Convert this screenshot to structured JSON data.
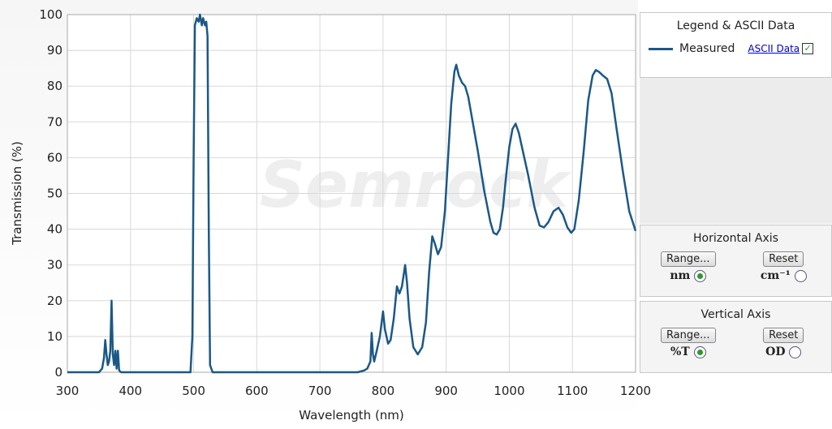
{
  "chart_data": {
    "type": "line",
    "x_label": "Wavelength (nm)",
    "y_label": "Transmission (%)",
    "watermark": "Semrock",
    "xlim": [
      300,
      1200
    ],
    "xticks": [
      300,
      400,
      500,
      600,
      700,
      800,
      900,
      1000,
      1100,
      1200
    ],
    "ylim": [
      0,
      100
    ],
    "yticks": [
      0,
      10,
      20,
      30,
      40,
      50,
      60,
      70,
      80,
      90,
      100
    ],
    "grid": true,
    "series": [
      {
        "name": "Measured",
        "color": "#1b5887",
        "x": [
          300,
          350,
          355,
          358,
          360,
          362,
          364,
          366,
          368,
          370,
          372,
          374,
          376,
          378,
          380,
          382,
          385,
          400,
          495,
          498,
          500,
          502,
          505,
          508,
          510,
          513,
          515,
          518,
          520,
          522,
          524,
          526,
          530,
          760,
          770,
          775,
          780,
          782,
          784,
          786,
          790,
          795,
          800,
          803,
          808,
          812,
          817,
          822,
          826,
          830,
          835,
          838,
          842,
          848,
          855,
          862,
          868,
          873,
          878,
          882,
          887,
          892,
          898,
          903,
          908,
          913,
          916,
          920,
          925,
          930,
          935,
          940,
          950,
          960,
          970,
          975,
          980,
          985,
          990,
          995,
          1000,
          1005,
          1010,
          1015,
          1020,
          1030,
          1040,
          1048,
          1055,
          1062,
          1070,
          1078,
          1085,
          1092,
          1098,
          1103,
          1110,
          1118,
          1125,
          1132,
          1137,
          1142,
          1148,
          1155,
          1162,
          1170,
          1180,
          1190,
          1200
        ],
        "values": [
          0,
          0,
          1,
          4,
          9,
          5,
          2,
          3,
          6,
          20,
          5,
          2,
          6,
          1,
          6,
          0.5,
          0,
          0,
          0,
          10,
          60,
          97,
          99,
          98,
          100,
          97,
          99,
          97,
          98,
          94,
          40,
          2,
          0,
          0,
          0.5,
          1,
          3,
          11,
          5,
          3,
          6,
          10,
          17,
          12,
          8,
          9,
          15,
          24,
          22,
          24,
          30,
          25,
          15,
          7,
          5,
          7,
          14,
          28,
          38,
          36,
          33,
          35,
          45,
          60,
          75,
          84,
          86,
          83,
          81,
          80,
          77,
          72,
          62,
          51,
          42,
          39,
          38.5,
          40,
          46,
          55,
          63,
          68,
          69.5,
          67,
          63,
          55,
          46,
          41,
          40.5,
          42,
          45,
          46,
          44,
          40.5,
          39,
          40,
          48,
          62,
          76,
          83,
          84.5,
          84,
          83,
          82,
          78,
          68,
          56,
          45,
          39.5
        ]
      }
    ]
  },
  "legend_panel": {
    "title": "Legend & ASCII Data",
    "link": "ASCII Data"
  },
  "horizontal_axis": {
    "title": "Horizontal Axis",
    "range_button": "Range...",
    "reset_button": "Reset",
    "option_1": "nm",
    "option_2": "cm⁻¹"
  },
  "vertical_axis": {
    "title": "Vertical  Axis",
    "range_button": "Range...",
    "reset_button": "Reset",
    "option_1": "%T",
    "option_2": "OD"
  }
}
